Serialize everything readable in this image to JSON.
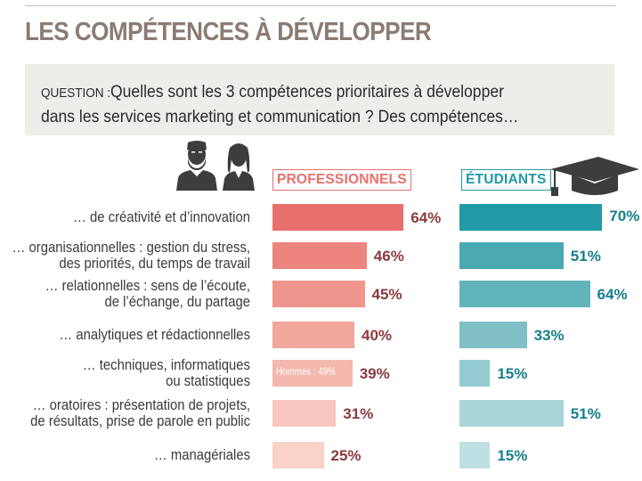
{
  "title": "LES COMPÉTENCES À DÉVELOPPER",
  "question": {
    "label": "QUESTION :",
    "line1": "Quelles sont les 3 compétences prioritaires à développer",
    "line2": "dans les services marketing et communication ? Des compétences…"
  },
  "icons": {
    "people": "man-woman-icon",
    "graduation": "mortarboard-icon"
  },
  "colors": {
    "professionals": [
      "#e8706c",
      "#ec857e",
      "#ef958d",
      "#f2a79d",
      "#f5b8ae",
      "#f7c6bc",
      "#f9d2c9"
    ],
    "students": [
      "#229aa5",
      "#49a8b1",
      "#62b4bb",
      "#7fc0c6",
      "#93cbd0",
      "#a9d5d8",
      "#bfe0e2"
    ],
    "prof_value": "#8a3a3e",
    "student_value": "#157f8a",
    "title": "#8a7c74",
    "question_bg": "#efedea"
  },
  "chart_data": {
    "type": "bar",
    "orientation": "horizontal",
    "categories": [
      [
        "… de créativité et d’innovation"
      ],
      [
        "… organisationnelles : gestion du stress,",
        "des priorités, du temps de travail"
      ],
      [
        "… relationnelles : sens de l’écoute,",
        "de l’échange, du partage"
      ],
      [
        "… analytiques et rédactionnelles"
      ],
      [
        "… techniques, informatiques",
        "ou statistiques"
      ],
      [
        "… oratoires : présentation de projets,",
        "de résultats, prise de parole en public"
      ],
      [
        "… managériales"
      ]
    ],
    "series": [
      {
        "name": "PROFESSIONNELS",
        "values": [
          64,
          46,
          45,
          40,
          39,
          31,
          25
        ],
        "labels": [
          "64%",
          "46%",
          "45%",
          "40%",
          "39%",
          "31%",
          "25%"
        ]
      },
      {
        "name": "ÉTUDIANTS",
        "values": [
          70,
          51,
          64,
          33,
          15,
          51,
          15
        ],
        "labels": [
          "70%",
          "51%",
          "64%",
          "33%",
          "15%",
          "51%",
          "15%"
        ]
      }
    ],
    "annotation": {
      "series": 0,
      "category": 4,
      "text": "Hommes : 49%"
    },
    "unit": "%",
    "grid": false,
    "legend": "top"
  }
}
